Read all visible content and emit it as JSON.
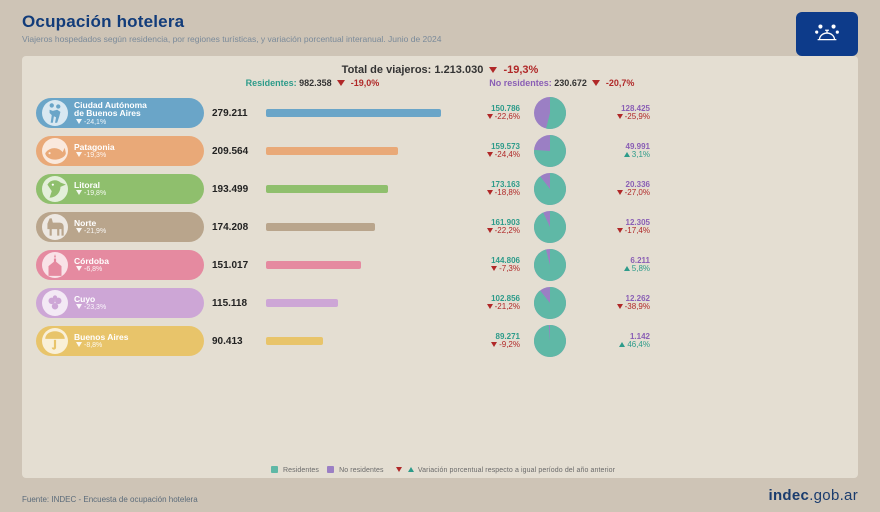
{
  "meta": {
    "title": "Ocupación hotelera",
    "subtitle": "Viajeros hospedados según residencia, por regiones turísticas, y variación porcentual interanual. Junio de 2024",
    "source": "Fuente: INDEC - Encuesta de ocupación hotelera",
    "brand_bold": "indec",
    "brand_rest": ".gob.ar"
  },
  "totals": {
    "label": "Total de viajeros:",
    "value": "1.213.030",
    "var": "-19,3%",
    "residents_label": "Residentes:",
    "residents_value": "982.358",
    "residents_var": "-19,0%",
    "nonres_label": "No residentes:",
    "nonres_value": "230.672",
    "nonres_var": "-20,7%"
  },
  "colors": {
    "panel_bg": "#e4ded2",
    "page_bg": "#cec4b6",
    "res": "#5fb8a6",
    "nres": "#9b7fc4",
    "down": "#b02828",
    "up": "#2d9b8a",
    "title": "#123c7a"
  },
  "bar_max": 280000,
  "regions": [
    {
      "name": "Ciudad Autónoma\nde Buenos Aires",
      "variation": "-24,1%",
      "total": "279.211",
      "total_num": 279211,
      "res": "150.786",
      "res_var": "-22,6%",
      "res_dir": "down",
      "nres": "128.425",
      "nres_var": "-25,9%",
      "nres_dir": "down",
      "pill_color": "#6aa5c8",
      "bar_color": "#6aa5c8",
      "res_n": 150786,
      "nres_n": 128425,
      "icon": "tango"
    },
    {
      "name": "Patagonia",
      "variation": "-19,3%",
      "total": "209.564",
      "total_num": 209564,
      "res": "159.573",
      "res_var": "-24,4%",
      "res_dir": "down",
      "nres": "49.991",
      "nres_var": "3,1%",
      "nres_dir": "up",
      "pill_color": "#e9a978",
      "bar_color": "#e9a978",
      "res_n": 159573,
      "nres_n": 49991,
      "icon": "whale"
    },
    {
      "name": "Litoral",
      "variation": "-19,8%",
      "total": "193.499",
      "total_num": 193499,
      "res": "173.163",
      "res_var": "-18,8%",
      "res_dir": "down",
      "nres": "20.336",
      "nres_var": "-27,0%",
      "nres_dir": "down",
      "pill_color": "#8fbf6d",
      "bar_color": "#8fbf6d",
      "res_n": 173163,
      "nres_n": 20336,
      "icon": "toucan"
    },
    {
      "name": "Norte",
      "variation": "-21,9%",
      "total": "174.208",
      "total_num": 174208,
      "res": "161.903",
      "res_var": "-22,2%",
      "res_dir": "down",
      "nres": "12.305",
      "nres_var": "-17,4%",
      "nres_dir": "down",
      "pill_color": "#b9a58c",
      "bar_color": "#b9a58c",
      "res_n": 161903,
      "nres_n": 12305,
      "icon": "llama"
    },
    {
      "name": "Córdoba",
      "variation": "-6,8%",
      "total": "151.017",
      "total_num": 151017,
      "res": "144.806",
      "res_var": "-7,3%",
      "res_dir": "down",
      "nres": "6.211",
      "nres_var": "5,8%",
      "nres_dir": "up",
      "pill_color": "#e58aa0",
      "bar_color": "#e58aa0",
      "res_n": 144806,
      "nres_n": 6211,
      "icon": "church"
    },
    {
      "name": "Cuyo",
      "variation": "-23,3%",
      "total": "115.118",
      "total_num": 115118,
      "res": "102.856",
      "res_var": "-21,2%",
      "res_dir": "down",
      "nres": "12.262",
      "nres_var": "-38,9%",
      "nres_dir": "down",
      "pill_color": "#cda6d6",
      "bar_color": "#cda6d6",
      "res_n": 102856,
      "nres_n": 12262,
      "icon": "grapes"
    },
    {
      "name": "Buenos Aires",
      "variation": "-8,8%",
      "total": "90.413",
      "total_num": 90413,
      "res": "89.271",
      "res_var": "-9,2%",
      "res_dir": "down",
      "nres": "1.142",
      "nres_var": "46,4%",
      "nres_dir": "up",
      "pill_color": "#e8c46a",
      "bar_color": "#e8c46a",
      "res_n": 89271,
      "nres_n": 1142,
      "icon": "umbrella"
    }
  ],
  "legend": {
    "res": "Residentes",
    "nres": "No residentes",
    "note": "Variación porcentual respecto a igual período del año anterior"
  }
}
